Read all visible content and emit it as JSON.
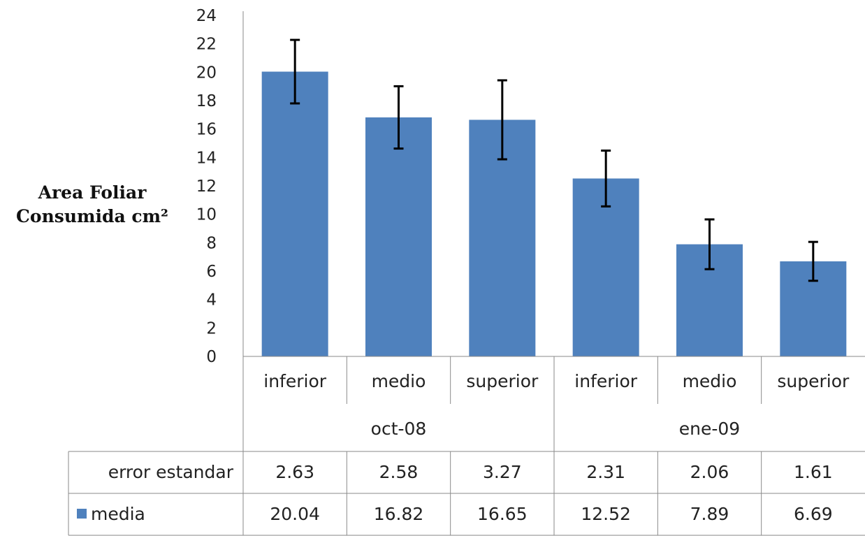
{
  "chart_data": {
    "type": "bar",
    "ylabel": "Area Foliar Consumida cm²",
    "ylim": [
      0,
      24
    ],
    "yticks": [
      0,
      2,
      4,
      6,
      8,
      10,
      12,
      14,
      16,
      18,
      20,
      22,
      24
    ],
    "grid": false,
    "categories": [
      "inferior",
      "medio",
      "superior",
      "inferior",
      "medio",
      "superior"
    ],
    "groups": [
      {
        "label": "oct-08",
        "span": 3
      },
      {
        "label": "ene-09",
        "span": 3
      }
    ],
    "series": [
      {
        "name": "media",
        "color": "#4f81bd",
        "values": [
          20.04,
          16.82,
          16.65,
          12.52,
          7.89,
          6.69
        ],
        "error_label": "error estandar",
        "errors": [
          2.63,
          2.58,
          3.27,
          2.31,
          2.06,
          1.61
        ]
      }
    ],
    "data_table": {
      "rows": [
        {
          "label": "error estandar",
          "values": [
            "2.63",
            "2.58",
            "3.27",
            "2.31",
            "2.06",
            "1.61"
          ]
        },
        {
          "label": "media",
          "values": [
            "20.04",
            "16.82",
            "16.65",
            "12.52",
            "7.89",
            "6.69"
          ]
        }
      ]
    }
  }
}
